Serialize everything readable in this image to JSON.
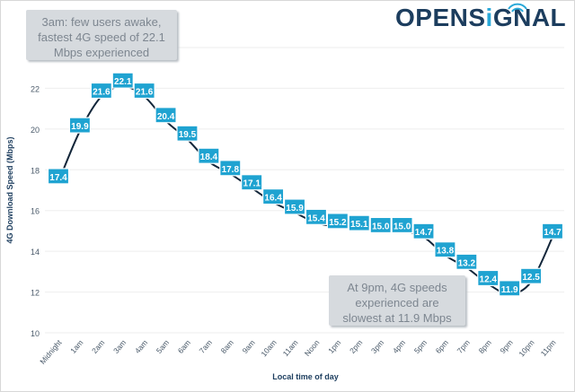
{
  "logo": {
    "text_before": "OPENS",
    "text_i": "i",
    "text_after": "GNAL",
    "brand_color": "#1c3d5e",
    "accent_color": "#29a8d8",
    "icon": "wifi-signal-icon"
  },
  "annotations": {
    "top": "3am: few users awake, fastest 4G speed of 22.1 Mbps experienced",
    "bottom": "At 9pm, 4G speeds experienced are slowest at 11.9 Mbps"
  },
  "chart_data": {
    "type": "line",
    "title": "",
    "xlabel": "Local time of day",
    "ylabel": "4G Download Speed (Mbps)",
    "categories": [
      "Midnight",
      "1am",
      "2am",
      "3am",
      "4am",
      "5am",
      "6am",
      "7am",
      "8am",
      "9am",
      "10am",
      "11am",
      "Noon",
      "1pm",
      "2pm",
      "3pm",
      "4pm",
      "5pm",
      "6pm",
      "7pm",
      "8pm",
      "9pm",
      "10pm",
      "11pm"
    ],
    "values": [
      17.4,
      19.9,
      21.6,
      22.1,
      21.6,
      20.4,
      19.5,
      18.4,
      17.8,
      17.1,
      16.4,
      15.9,
      15.4,
      15.2,
      15.1,
      15.0,
      15.0,
      14.7,
      13.8,
      13.2,
      12.4,
      11.9,
      12.5,
      14.7
    ],
    "data_labels": [
      "17.4",
      "19.9",
      "21.6",
      "22.1",
      "21.6",
      "20.4",
      "19.5",
      "18.4",
      "17.8",
      "17.1",
      "16.4",
      "15.9",
      "15.4",
      "15.2",
      "15.1",
      "15.0",
      "15.0",
      "14.7",
      "13.8",
      "13.2",
      "12.4",
      "11.9",
      "12.5",
      "14.7"
    ],
    "yticks": [
      "10",
      "12",
      "14",
      "16",
      "18",
      "20",
      "22"
    ],
    "ylim": [
      10,
      24
    ],
    "grid": true,
    "smooth": true,
    "line_color": "#12263a",
    "label_color": "#1fa3d1"
  }
}
